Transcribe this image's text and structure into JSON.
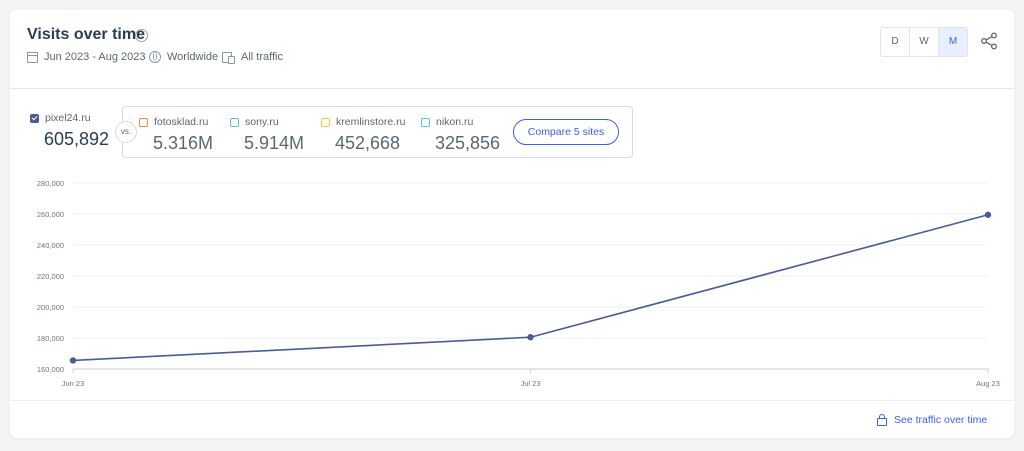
{
  "header": {
    "title": "Visits over time",
    "info_icon": "info-icon",
    "date_range": "Jun 2023 - Aug 2023",
    "region": "Worldwide",
    "traffic_type": "All traffic"
  },
  "period_buttons": [
    {
      "label": "D",
      "active": false
    },
    {
      "label": "W",
      "active": false
    },
    {
      "label": "M",
      "active": true
    }
  ],
  "primary_site": {
    "name": "pixel24.ru",
    "value": "605,892",
    "color": "#4e5b92"
  },
  "vs_label": "vs.",
  "compare_sites": [
    {
      "name": "fotosklad.ru",
      "value": "5.316M",
      "color": "#f5894a"
    },
    {
      "name": "sony.ru",
      "value": "5.914M",
      "color": "#4fd1a5"
    },
    {
      "name": "kremlinstore.ru",
      "value": "452,668",
      "color": "#f7c544"
    },
    {
      "name": "nikon.ru",
      "value": "325,856",
      "color": "#52c9d6"
    }
  ],
  "compare_button": "Compare 5 sites",
  "footer_link": "See traffic over time",
  "chart_data": {
    "type": "line",
    "categories": [
      "Jun 23",
      "Jul 23",
      "Aug 23"
    ],
    "series": [
      {
        "name": "pixel24.ru",
        "values": [
          165500,
          180500,
          259500
        ],
        "color": "#4e5b92"
      }
    ],
    "yticks": [
      "160,000",
      "180,000",
      "200,000",
      "220,000",
      "240,000",
      "260,000",
      "280,000"
    ],
    "ylim": [
      160000,
      280000
    ],
    "grid": true
  }
}
